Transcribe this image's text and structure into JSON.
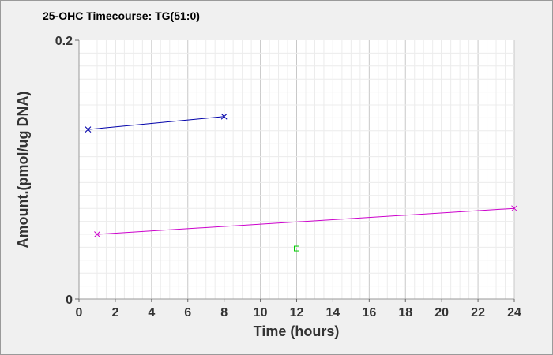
{
  "chart_data": {
    "type": "line",
    "title": "25-OHC Timecourse: TG(51:0)",
    "xlabel": "Time (hours)",
    "ylabel": "Amount.(pmol/ug DNA)",
    "xlim": [
      0,
      24
    ],
    "ylim": [
      0,
      0.2
    ],
    "x_ticks": [
      0,
      2,
      4,
      6,
      8,
      10,
      12,
      14,
      16,
      18,
      20,
      22,
      24
    ],
    "y_ticks": [
      0,
      0.2
    ],
    "grid": true,
    "series": [
      {
        "color": "#0000aa",
        "marker": "x",
        "points": [
          [
            0.5,
            0.131
          ],
          [
            8,
            0.141
          ]
        ]
      },
      {
        "color": "#cc00cc",
        "marker": "x",
        "points": [
          [
            1,
            0.05
          ],
          [
            24,
            0.07
          ]
        ]
      },
      {
        "color": "#00cc00",
        "marker": "square",
        "points": [
          [
            12,
            0.039
          ]
        ]
      }
    ]
  }
}
